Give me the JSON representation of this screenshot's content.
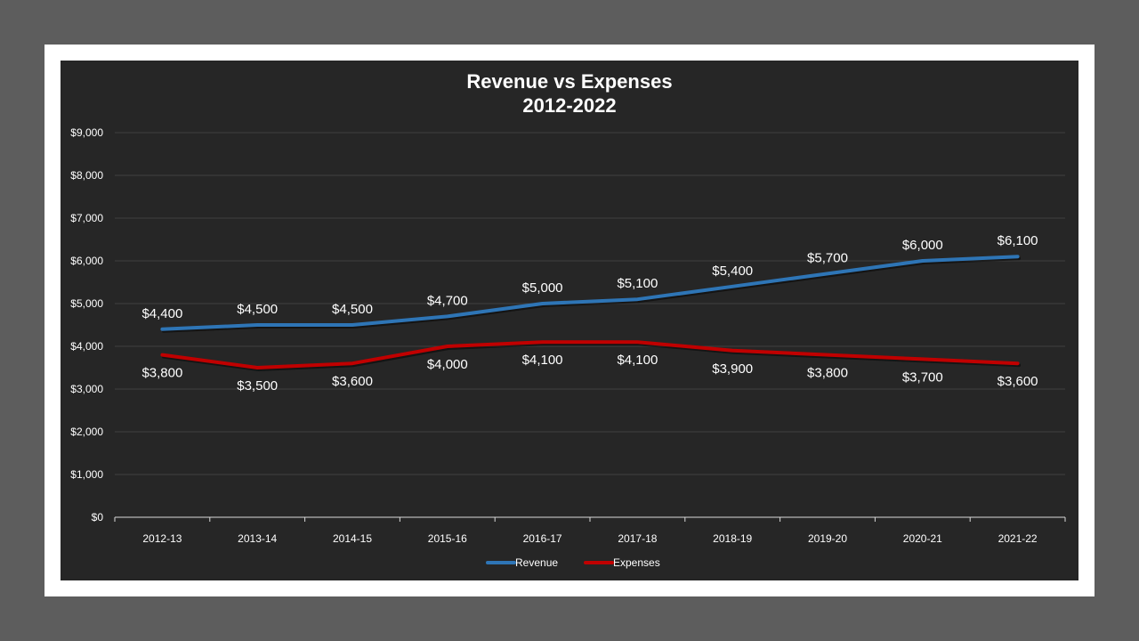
{
  "chart_data": {
    "type": "line",
    "title": "Revenue vs Expenses",
    "subtitle": "2012-2022",
    "categories": [
      "2012-13",
      "2013-14",
      "2014-15",
      "2015-16",
      "2016-17",
      "2017-18",
      "2018-19",
      "2019-20",
      "2020-21",
      "2021-22"
    ],
    "series": [
      {
        "name": "Revenue",
        "color": "#2e75b6",
        "values": [
          4400,
          4500,
          4500,
          4700,
          5000,
          5100,
          5400,
          5700,
          6000,
          6100
        ],
        "labels": [
          "$4,400",
          "$4,500",
          "$4,500",
          "$4,700",
          "$5,000",
          "$5,100",
          "$5,400",
          "$5,700",
          "$6,000",
          "$6,100"
        ],
        "label_position": "above"
      },
      {
        "name": "Expenses",
        "color": "#c00000",
        "values": [
          3800,
          3500,
          3600,
          4000,
          4100,
          4100,
          3900,
          3800,
          3700,
          3600
        ],
        "labels": [
          "$3,800",
          "$3,500",
          "$3,600",
          "$4,000",
          "$4,100",
          "$4,100",
          "$3,900",
          "$3,800",
          "$3,700",
          "$3,600"
        ],
        "label_position": "below"
      }
    ],
    "ylim": [
      0,
      9000
    ],
    "yticks": [
      0,
      1000,
      2000,
      3000,
      4000,
      5000,
      6000,
      7000,
      8000,
      9000
    ],
    "ytick_labels": [
      "$0",
      "$1,000",
      "$2,000",
      "$3,000",
      "$4,000",
      "$5,000",
      "$6,000",
      "$7,000",
      "$8,000",
      "$9,000"
    ],
    "xlabel": "",
    "ylabel": "",
    "grid": true,
    "legend_position": "bottom",
    "background_color": "#262626",
    "frame_color": "#ffffff"
  }
}
